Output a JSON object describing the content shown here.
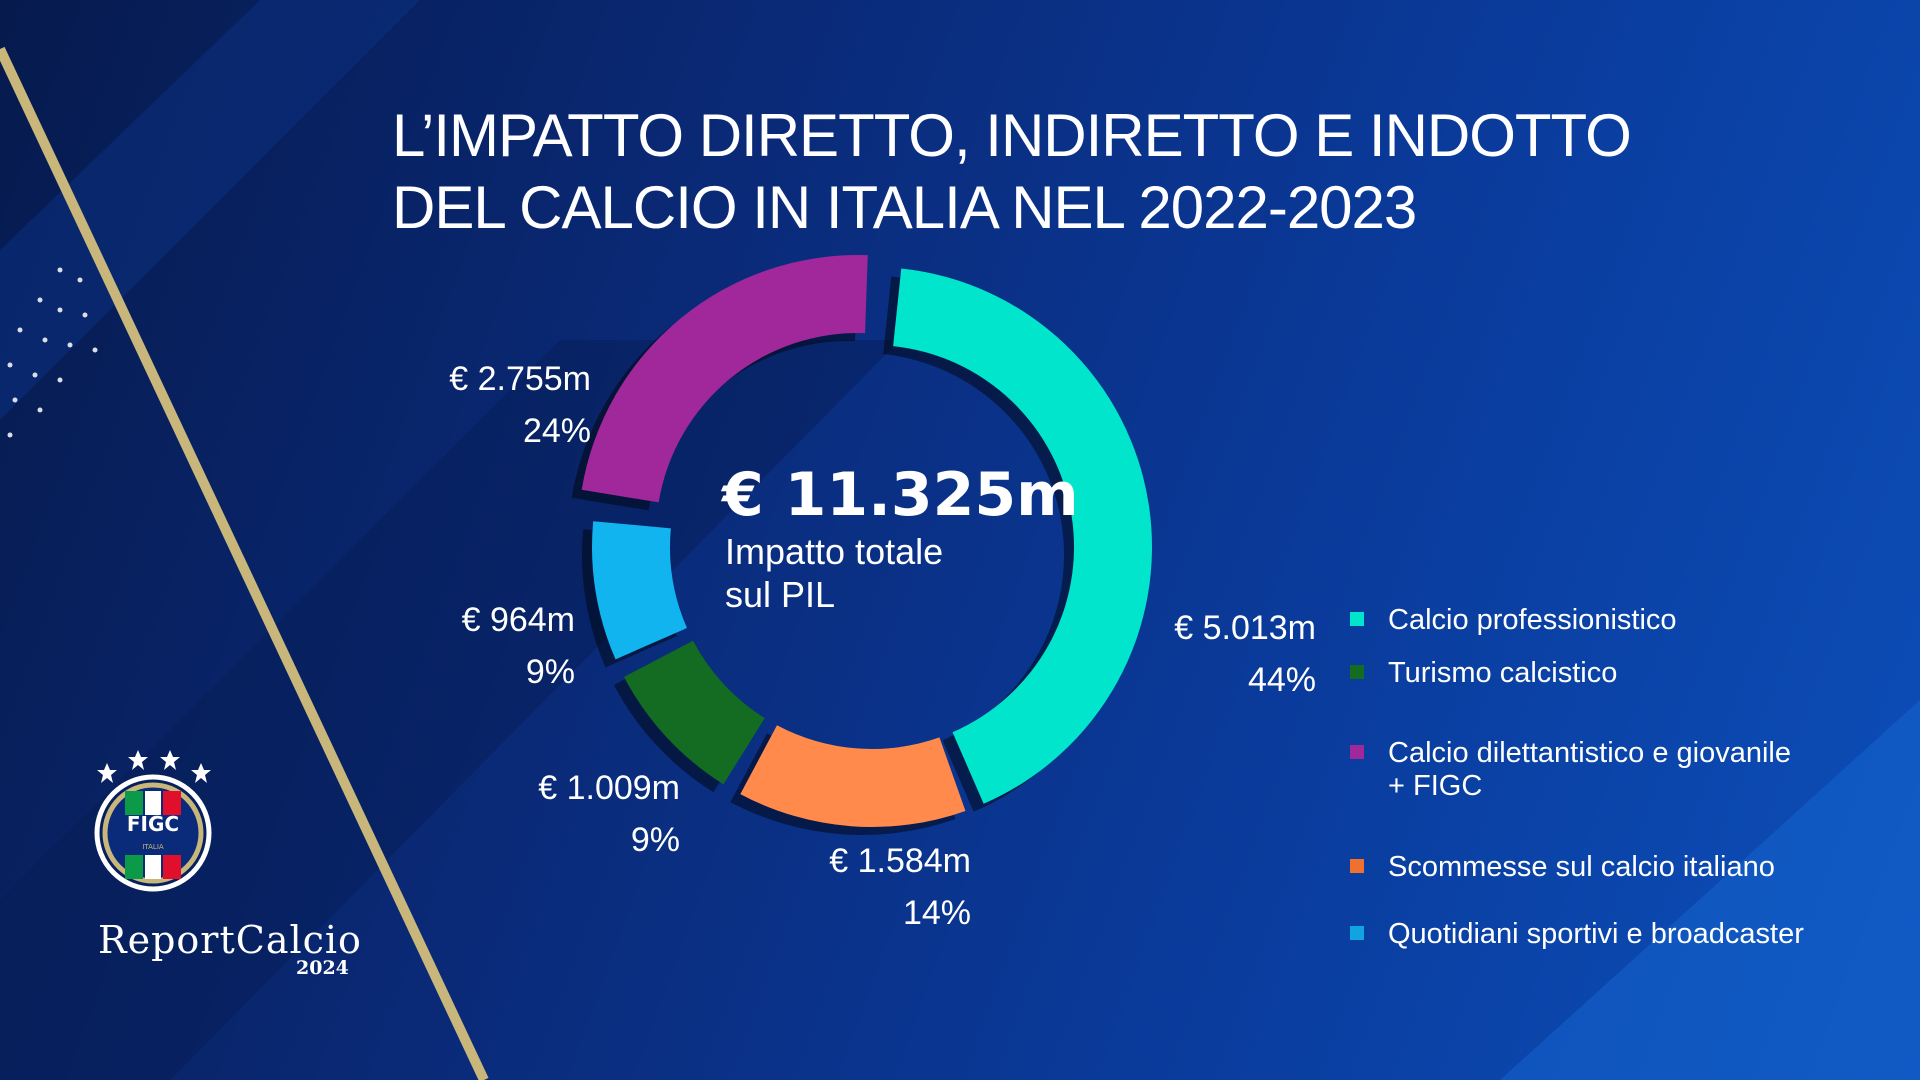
{
  "title": {
    "line1": "L’IMPATTO DIRETTO, INDIRETTO E INDOTTO",
    "line2": "DEL CALCIO IN ITALIA NEL 2022-2023"
  },
  "chart_data": {
    "type": "pie",
    "variant": "donut",
    "center": {
      "value": "€ 11.325m",
      "label_line1": "Impatto totale",
      "label_line2": "sul PIL"
    },
    "categories": [
      "Calcio professionistico",
      "Scommesse sul calcio italiano",
      "Turismo calcistico",
      "Quotidiani sportivi e broadcaster",
      "Calcio dilettantistico e giovanile + FIGC"
    ],
    "values": [
      5013,
      1584,
      1009,
      964,
      2755
    ],
    "value_labels": [
      "€ 5.013m",
      "€ 1.584m",
      "€ 1.009m",
      "€ 964m",
      "€ 2.755m"
    ],
    "percent_labels": [
      "44%",
      "14%",
      "9%",
      "9%",
      "24%"
    ],
    "colors": [
      "#00e5cc",
      "#ff8a4c",
      "#146b22",
      "#12b4f0",
      "#a0289a"
    ],
    "unit": "€ m",
    "legend_position": "right"
  },
  "legend": [
    {
      "label": "Calcio professionistico",
      "color": "#00e5cc"
    },
    {
      "label": "Turismo calcistico",
      "color": "#146b22"
    },
    {
      "label": "Calcio dilettantistico e giovanile",
      "label2": "+ FIGC",
      "color": "#a0289a"
    },
    {
      "label": "Scommesse sul calcio italiano",
      "color": "#ff8a4c"
    },
    {
      "label": "Quotidiani sportivi e broadcaster",
      "color": "#12b4f0"
    }
  ],
  "logo": {
    "badge": "FIGC",
    "badge_sub": "ITALIA",
    "brand": "ReportCalcio",
    "year": "2024"
  }
}
